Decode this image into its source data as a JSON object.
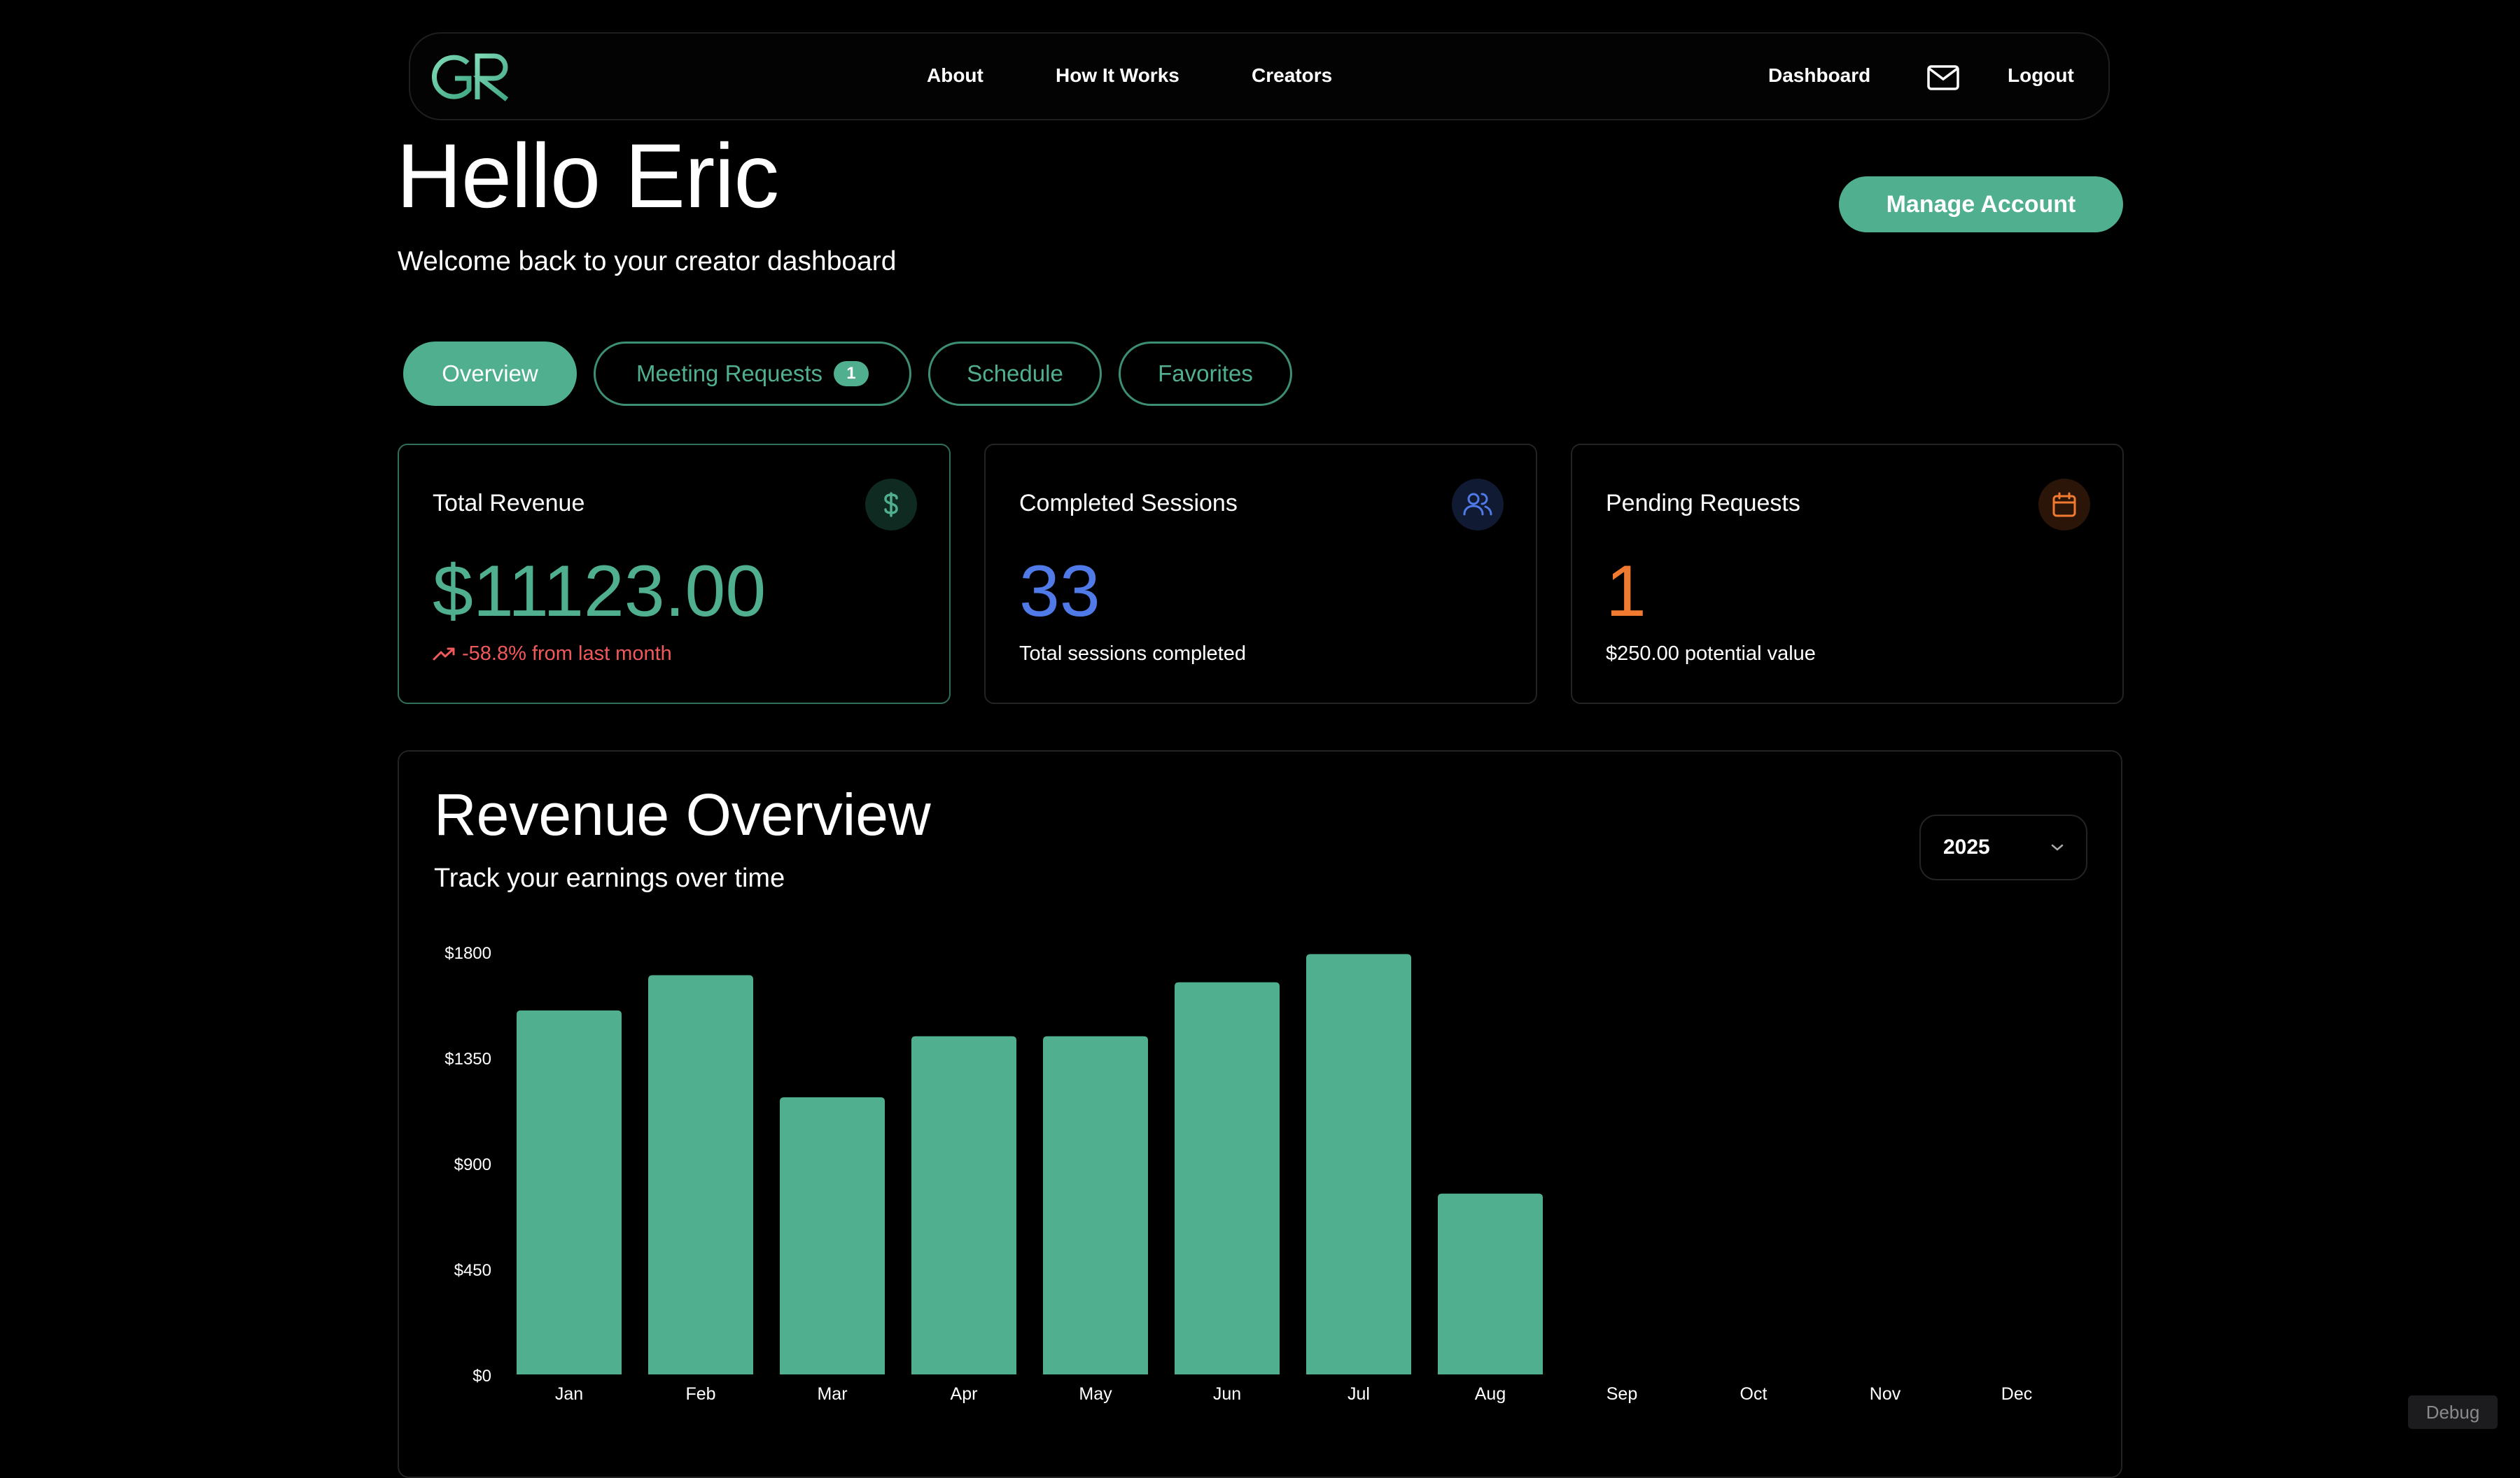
{
  "nav": {
    "logo_text": "GR",
    "links": [
      "About",
      "How It Works",
      "Creators"
    ],
    "dashboard": "Dashboard",
    "mail_icon": "mail-icon",
    "logout": "Logout"
  },
  "header": {
    "greeting": "Hello Eric",
    "subtitle": "Welcome back to your creator dashboard",
    "manage_button": "Manage Account"
  },
  "tabs": [
    {
      "label": "Overview",
      "active": true
    },
    {
      "label": "Meeting Requests",
      "badge": "1"
    },
    {
      "label": "Schedule"
    },
    {
      "label": "Favorites"
    }
  ],
  "stats": [
    {
      "title": "Total Revenue",
      "value": "$11123.00",
      "sub": "-58.8% from last month",
      "icon": "dollar-icon",
      "color": "#4faf8f",
      "sub_color": "#f0595b"
    },
    {
      "title": "Completed Sessions",
      "value": "33",
      "sub": "Total sessions completed",
      "icon": "users-icon",
      "color": "#4f7ae8"
    },
    {
      "title": "Pending Requests",
      "value": "1",
      "sub": "$250.00 potential value",
      "icon": "calendar-icon",
      "color": "#f07a2f"
    }
  ],
  "revenue": {
    "title": "Revenue Overview",
    "subtitle": "Track your earnings over time",
    "year": "2025"
  },
  "chart_data": {
    "type": "bar",
    "categories": [
      "Jan",
      "Feb",
      "Mar",
      "Apr",
      "May",
      "Jun",
      "Jul",
      "Aug",
      "Sep",
      "Oct",
      "Nov",
      "Dec"
    ],
    "values": [
      1550,
      1700,
      1180,
      1440,
      1440,
      1670,
      1790,
      770,
      0,
      0,
      0,
      0
    ],
    "ylim": [
      0,
      1800
    ],
    "y_ticks": [
      "$0",
      "$450",
      "$900",
      "$1350",
      "$1800"
    ],
    "bar_color": "#4faf8f",
    "grid": false
  },
  "debug": "Debug"
}
